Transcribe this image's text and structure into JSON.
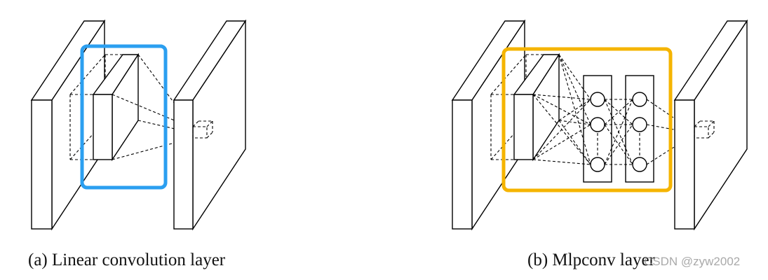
{
  "diagram": {
    "panel_a": {
      "caption": "(a) Linear convolution layer",
      "highlight_color": "#2b9ff0"
    },
    "panel_b": {
      "caption": "(b) Mlpconv layer",
      "highlight_color": "#f5b400"
    }
  },
  "watermark": "CSDN @zyw2002"
}
